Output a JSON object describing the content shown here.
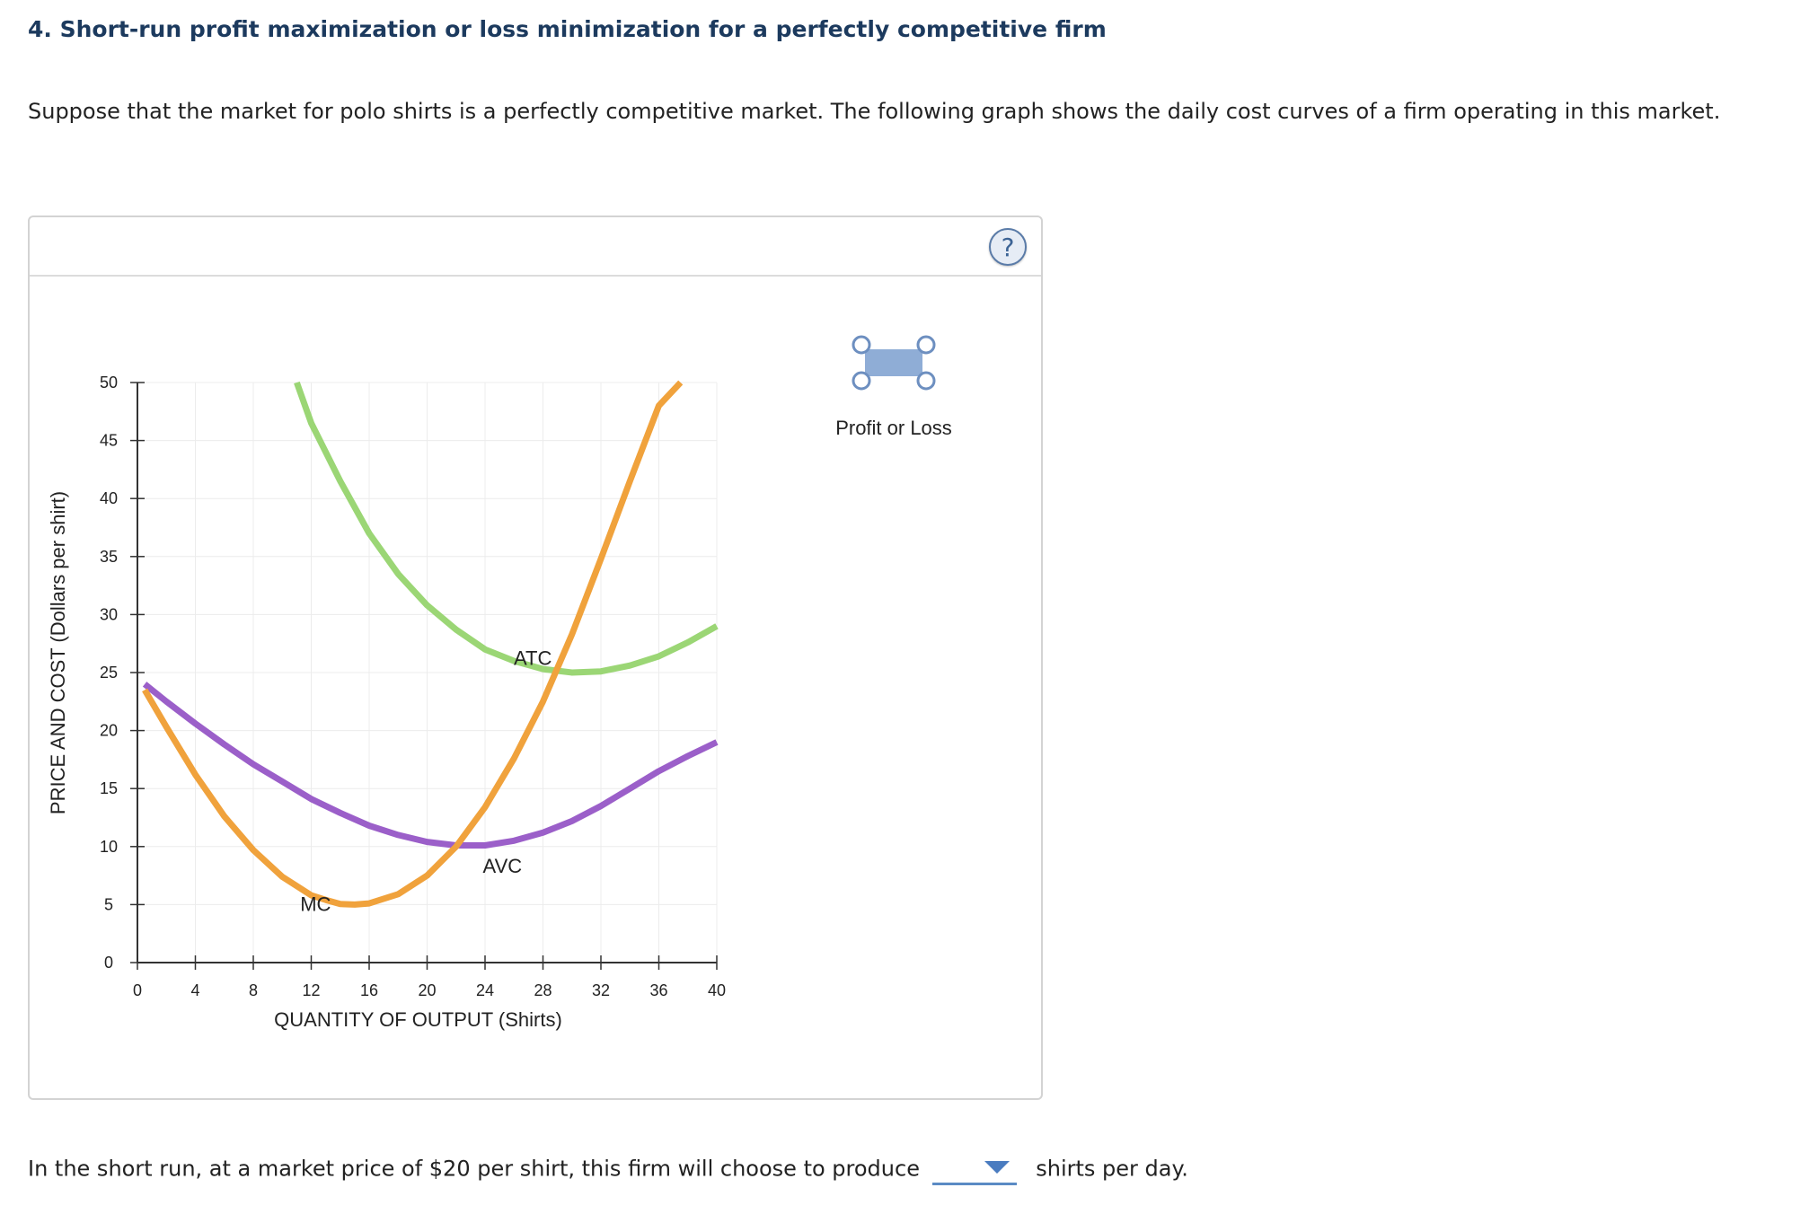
{
  "heading": "4. Short-run profit maximization or loss minimization for a perfectly competitive firm",
  "intro_text": "Suppose that the market for polo shirts is a perfectly competitive market. The following graph shows the daily cost curves of a firm operating in this market.",
  "help_label": "?",
  "legend": {
    "profit_or_loss_label": "Profit or Loss",
    "fill_color": "#8fadd6",
    "handle_color": "#6d8fc0"
  },
  "question": {
    "before": "In the short run, at a market price of $20 per shirt, this firm will choose to produce",
    "selected": "",
    "after": "shirts per day."
  },
  "chart_data": {
    "type": "line",
    "xlabel": "QUANTITY OF OUTPUT (Shirts)",
    "ylabel": "PRICE AND COST (Dollars per shirt)",
    "xlim": [
      0,
      40
    ],
    "ylim": [
      0,
      50
    ],
    "x_ticks": [
      0,
      4,
      8,
      12,
      16,
      20,
      24,
      28,
      32,
      36,
      40
    ],
    "y_ticks": [
      0,
      5,
      10,
      15,
      20,
      25,
      30,
      35,
      40,
      45,
      50
    ],
    "grid": true,
    "series": [
      {
        "name": "ATC",
        "color": "#9bd675",
        "x": [
          11,
          12,
          14,
          16,
          18,
          20,
          22,
          24,
          26,
          28,
          30,
          32,
          34,
          36,
          38,
          40
        ],
        "y": [
          50,
          46.5,
          41.5,
          37,
          33.5,
          30.8,
          28.7,
          27,
          26,
          25.3,
          25,
          25.1,
          25.6,
          26.4,
          27.6,
          29
        ]
      },
      {
        "name": "AVC",
        "color": "#9b5fc9",
        "x": [
          0.5,
          2,
          4,
          6,
          8,
          10,
          12,
          14,
          16,
          18,
          20,
          22,
          24,
          26,
          28,
          30,
          32,
          34,
          36,
          38,
          40
        ],
        "y": [
          24,
          22.5,
          20.6,
          18.8,
          17.1,
          15.6,
          14.1,
          12.9,
          11.8,
          11,
          10.4,
          10.1,
          10.1,
          10.5,
          11.2,
          12.2,
          13.5,
          15,
          16.5,
          17.8,
          19
        ]
      },
      {
        "name": "MC",
        "color": "#f0a23c",
        "x": [
          0.5,
          2,
          4,
          6,
          8,
          10,
          12,
          13,
          14,
          15,
          16,
          18,
          20,
          22,
          24,
          26,
          28,
          30,
          32,
          34,
          36,
          37.5
        ],
        "y": [
          23.5,
          20.3,
          16.2,
          12.6,
          9.7,
          7.4,
          5.8,
          5.4,
          5.05,
          5,
          5.1,
          5.9,
          7.5,
          10,
          13.4,
          17.6,
          22.5,
          28.3,
          34.8,
          41.5,
          48,
          50
        ]
      }
    ],
    "annotations": [
      {
        "text": "ATC",
        "x": 27.3,
        "y": 26.2
      },
      {
        "text": "AVC",
        "x": 25.2,
        "y": 8.3
      },
      {
        "text": "MC",
        "x": 12.3,
        "y": 5
      }
    ]
  }
}
